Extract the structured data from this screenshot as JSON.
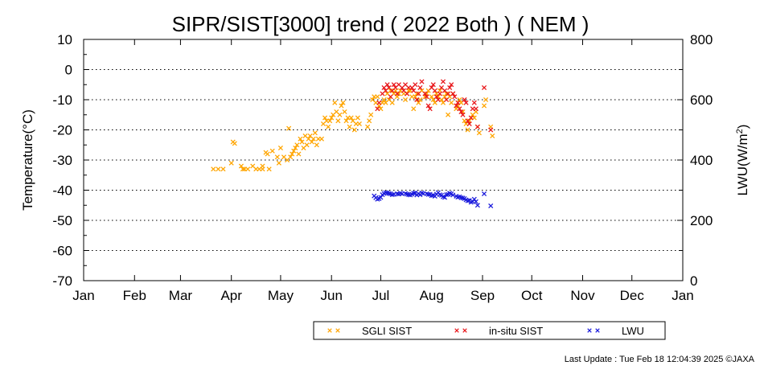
{
  "chart_data": {
    "type": "scatter",
    "title": "SIPR/SIST[3000] trend ( 2022 Both ) ( NEM )",
    "ylabel": "Temperature(°C)",
    "y2label_main": "LWU(W/m",
    "y2label_sup": "2",
    "y2label_end": ")",
    "xlabel": "",
    "x_ticks": [
      "Jan",
      "Feb",
      "Mar",
      "Apr",
      "May",
      "Jun",
      "Jul",
      "Aug",
      "Sep",
      "Oct",
      "Nov",
      "Dec",
      "Jan"
    ],
    "y_ticks": [
      "10",
      "0",
      "-10",
      "-20",
      "-30",
      "-40",
      "-50",
      "-60",
      "-70"
    ],
    "y2_ticks": [
      "800",
      "600",
      "400",
      "200",
      "0"
    ],
    "ylim": [
      -70,
      10
    ],
    "y2lim": [
      0,
      800
    ],
    "xlim_day_of_year": [
      1,
      366
    ],
    "grid": true,
    "legend_placement": "bottom",
    "marker": "×",
    "series": [
      {
        "name": "SGLI SIST",
        "color": "#ffa500",
        "axis": "left",
        "points": [
          [
            80,
            -33
          ],
          [
            83,
            -33
          ],
          [
            86,
            -33
          ],
          [
            91,
            -31
          ],
          [
            92,
            -24
          ],
          [
            93,
            -24.5
          ],
          [
            97,
            -32
          ],
          [
            98,
            -33
          ],
          [
            99,
            -33
          ],
          [
            101,
            -33
          ],
          [
            104,
            -32
          ],
          [
            106,
            -33
          ],
          [
            108,
            -33
          ],
          [
            110,
            -33
          ],
          [
            110,
            -32
          ],
          [
            112,
            -27.5
          ],
          [
            113,
            -28
          ],
          [
            114,
            -33
          ],
          [
            116,
            -27
          ],
          [
            119,
            -29
          ],
          [
            120,
            -31
          ],
          [
            121,
            -26
          ],
          [
            123,
            -29
          ],
          [
            125,
            -30
          ],
          [
            126,
            -19.5
          ],
          [
            127,
            -29
          ],
          [
            128,
            -28
          ],
          [
            129,
            -27
          ],
          [
            130,
            -26
          ],
          [
            131,
            -25
          ],
          [
            132,
            -28
          ],
          [
            133,
            -23
          ],
          [
            134,
            -24
          ],
          [
            135,
            -26
          ],
          [
            136,
            -22
          ],
          [
            137,
            -25
          ],
          [
            138,
            -23
          ],
          [
            139,
            -22
          ],
          [
            140,
            -24
          ],
          [
            141,
            -23
          ],
          [
            142,
            -21
          ],
          [
            143,
            -25
          ],
          [
            144,
            -23
          ],
          [
            146,
            -23
          ],
          [
            147,
            -18
          ],
          [
            148,
            -16
          ],
          [
            149,
            -17
          ],
          [
            150,
            -19
          ],
          [
            151,
            -17
          ],
          [
            152,
            -16
          ],
          [
            153,
            -15
          ],
          [
            154,
            -11
          ],
          [
            155,
            -14
          ],
          [
            156,
            -17
          ],
          [
            157,
            -15
          ],
          [
            158,
            -12
          ],
          [
            159,
            -11
          ],
          [
            160,
            -14
          ],
          [
            161,
            -17
          ],
          [
            162,
            -16
          ],
          [
            163,
            -19
          ],
          [
            164,
            -16
          ],
          [
            165,
            -17
          ],
          [
            166,
            -20
          ],
          [
            167,
            -18
          ],
          [
            168,
            -16
          ],
          [
            169,
            -18
          ],
          [
            174,
            -19
          ],
          [
            175,
            -17
          ],
          [
            176,
            -15
          ],
          [
            177,
            -10
          ],
          [
            178,
            -9
          ],
          [
            179,
            -11
          ],
          [
            180,
            -9
          ],
          [
            181,
            -12
          ],
          [
            182,
            -13
          ],
          [
            183,
            -11
          ],
          [
            184,
            -10
          ],
          [
            185,
            -11
          ],
          [
            186,
            -8
          ],
          [
            187,
            -10
          ],
          [
            188,
            -7
          ],
          [
            189,
            -11
          ],
          [
            190,
            -8
          ],
          [
            191,
            -7
          ],
          [
            192,
            -9
          ],
          [
            193,
            -8
          ],
          [
            194,
            -7
          ],
          [
            196,
            -8
          ],
          [
            197,
            -10
          ],
          [
            198,
            -8
          ],
          [
            199,
            -7
          ],
          [
            200,
            -7
          ],
          [
            201,
            -9
          ],
          [
            202,
            -13
          ],
          [
            203,
            -9
          ],
          [
            204,
            -8
          ],
          [
            205,
            -11
          ],
          [
            206,
            -10
          ],
          [
            207,
            -7
          ],
          [
            209,
            -9
          ],
          [
            210,
            -8
          ],
          [
            211,
            -7
          ],
          [
            213,
            -9
          ],
          [
            214,
            -10
          ],
          [
            215,
            -11
          ],
          [
            216,
            -8
          ],
          [
            217,
            -9
          ],
          [
            218,
            -7
          ],
          [
            219,
            -10
          ],
          [
            220,
            -11
          ],
          [
            221,
            -9
          ],
          [
            222,
            -8
          ],
          [
            223,
            -15
          ],
          [
            224,
            -9
          ],
          [
            225,
            -11
          ],
          [
            226,
            -8
          ],
          [
            228,
            -13
          ],
          [
            229,
            -12
          ],
          [
            230,
            -10
          ],
          [
            231,
            -11
          ],
          [
            232,
            -14
          ],
          [
            233,
            -17
          ],
          [
            234,
            -18
          ],
          [
            235,
            -20
          ],
          [
            236,
            -17
          ],
          [
            238,
            -15
          ],
          [
            239,
            -16
          ],
          [
            240,
            -14
          ],
          [
            241,
            -19
          ],
          [
            242,
            -21
          ],
          [
            245,
            -12
          ],
          [
            246,
            -10
          ],
          [
            249,
            -19
          ],
          [
            250,
            -22
          ]
        ]
      },
      {
        "name": "in-situ SIST",
        "color": "#e8161a",
        "axis": "left",
        "points": [
          [
            180,
            -13
          ],
          [
            181,
            -11
          ],
          [
            183,
            -8
          ],
          [
            184,
            -6
          ],
          [
            185,
            -7
          ],
          [
            186,
            -5
          ],
          [
            187,
            -6
          ],
          [
            188,
            -9
          ],
          [
            189,
            -7
          ],
          [
            190,
            -5
          ],
          [
            191,
            -6
          ],
          [
            192,
            -8
          ],
          [
            193,
            -5
          ],
          [
            195,
            -6
          ],
          [
            196,
            -7
          ],
          [
            197,
            -5
          ],
          [
            198,
            -8
          ],
          [
            199,
            -6
          ],
          [
            201,
            -6
          ],
          [
            202,
            -7
          ],
          [
            203,
            -5
          ],
          [
            204,
            -10
          ],
          [
            205,
            -8
          ],
          [
            206,
            -6
          ],
          [
            207,
            -4
          ],
          [
            209,
            -8
          ],
          [
            210,
            -9
          ],
          [
            211,
            -12
          ],
          [
            212,
            -13
          ],
          [
            213,
            -6
          ],
          [
            214,
            -5
          ],
          [
            215,
            -7
          ],
          [
            216,
            -9
          ],
          [
            217,
            -10
          ],
          [
            218,
            -8
          ],
          [
            219,
            -6
          ],
          [
            220,
            -4
          ],
          [
            221,
            -7
          ],
          [
            222,
            -10
          ],
          [
            223,
            -8
          ],
          [
            224,
            -6
          ],
          [
            225,
            -5
          ],
          [
            226,
            -8
          ],
          [
            227,
            -9
          ],
          [
            228,
            -12
          ],
          [
            229,
            -11
          ],
          [
            230,
            -13
          ],
          [
            231,
            -14
          ],
          [
            232,
            -15
          ],
          [
            233,
            -10
          ],
          [
            234,
            -11
          ],
          [
            235,
            -17
          ],
          [
            236,
            -18
          ],
          [
            237,
            -16
          ],
          [
            238,
            -13
          ],
          [
            239,
            -11
          ],
          [
            240,
            -13
          ],
          [
            241,
            -19
          ],
          [
            245,
            -6
          ],
          [
            249,
            -20
          ]
        ]
      },
      {
        "name": "LWU",
        "color": "#1a1adc",
        "axis": "right",
        "points": [
          [
            178,
            281
          ],
          [
            179,
            275
          ],
          [
            180,
            270
          ],
          [
            181,
            272
          ],
          [
            182,
            276
          ],
          [
            183,
            285
          ],
          [
            184,
            289
          ],
          [
            185,
            292
          ],
          [
            186,
            291
          ],
          [
            187,
            289
          ],
          [
            188,
            288
          ],
          [
            189,
            285
          ],
          [
            190,
            286
          ],
          [
            192,
            288
          ],
          [
            193,
            287
          ],
          [
            194,
            290
          ],
          [
            195,
            288
          ],
          [
            197,
            289
          ],
          [
            198,
            287
          ],
          [
            199,
            285
          ],
          [
            200,
            284
          ],
          [
            201,
            287
          ],
          [
            202,
            290
          ],
          [
            203,
            291
          ],
          [
            204,
            284
          ],
          [
            205,
            288
          ],
          [
            206,
            285
          ],
          [
            207,
            291
          ],
          [
            208,
            289
          ],
          [
            210,
            288
          ],
          [
            211,
            286
          ],
          [
            212,
            286
          ],
          [
            213,
            282
          ],
          [
            214,
            283
          ],
          [
            215,
            280
          ],
          [
            216,
            287
          ],
          [
            217,
            292
          ],
          [
            218,
            285
          ],
          [
            219,
            283
          ],
          [
            220,
            278
          ],
          [
            221,
            276
          ],
          [
            222,
            285
          ],
          [
            223,
            286
          ],
          [
            224,
            290
          ],
          [
            225,
            288
          ],
          [
            226,
            284
          ],
          [
            228,
            280
          ],
          [
            229,
            277
          ],
          [
            230,
            278
          ],
          [
            231,
            275
          ],
          [
            232,
            274
          ],
          [
            233,
            272
          ],
          [
            234,
            268
          ],
          [
            235,
            265
          ],
          [
            236,
            266
          ],
          [
            237,
            260
          ],
          [
            238,
            262
          ],
          [
            239,
            270
          ],
          [
            240,
            262
          ],
          [
            241,
            250
          ],
          [
            245,
            288
          ],
          [
            249,
            248
          ]
        ]
      }
    ]
  },
  "footer": {
    "last_update": "Last Update : Tue Feb 18 12:04:39 2025 ©JAXA"
  }
}
